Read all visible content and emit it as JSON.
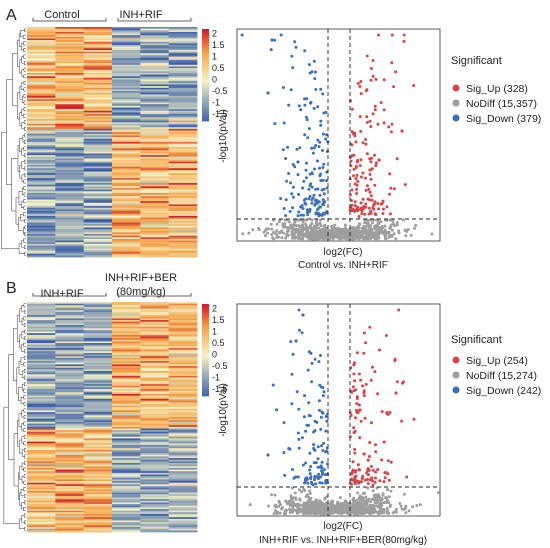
{
  "colors": {
    "up": "#d6454a",
    "nodiff": "#9e9e9e",
    "down": "#3b6fb6",
    "heat_low": "#3a5fa8",
    "heat_mid": "#f4f3c6",
    "heat_high": "#c9232c"
  },
  "chart_data": [
    {
      "type": "heatmap",
      "panel_label": "A",
      "groups": [
        "Control",
        "INH+RIF"
      ],
      "columns_per_group": 3,
      "legend_ticks": [
        "2",
        "1.5",
        "1",
        "0.5",
        "0",
        "-0.5",
        "-1",
        "-1.5"
      ],
      "value_range": [
        -1.8,
        2.2
      ]
    },
    {
      "type": "scatter",
      "xlabel": "log2(FC)",
      "ylabel": "-log10(pVal)",
      "subtitle": "Control vs. INH+RIF",
      "legend_title": "Significant",
      "legend": [
        {
          "name": "Sig_Up (328)",
          "color": "#d6454a"
        },
        {
          "name": "NoDiff (15,357)",
          "color": "#9e9e9e"
        },
        {
          "name": "Sig_Down (379)",
          "color": "#3b6fb6"
        }
      ]
    },
    {
      "type": "heatmap",
      "panel_label": "B",
      "groups": [
        "INH+RIF",
        "INH+RIF+BER (80mg/kg)"
      ],
      "group_lines": [
        [
          "INH+RIF"
        ],
        [
          "INH+RIF+BER",
          "(80mg/kg)"
        ]
      ],
      "columns_per_group": 3,
      "legend_ticks": [
        "2",
        "1.5",
        "1",
        "0.5",
        "0",
        "-0.5",
        "-1",
        "-1.5"
      ],
      "value_range": [
        -1.8,
        2.2
      ]
    },
    {
      "type": "scatter",
      "xlabel": "log2(FC)",
      "ylabel": "-log10(pVal)",
      "subtitle": "INH+RIF vs. INH+RIF+BER(80mg/kg)",
      "legend_title": "Significant",
      "legend": [
        {
          "name": "Sig_Up (254)",
          "color": "#d6454a"
        },
        {
          "name": "NoDiff (15,274)",
          "color": "#9e9e9e"
        },
        {
          "name": "Sig_Down (242)",
          "color": "#3b6fb6"
        }
      ]
    }
  ]
}
